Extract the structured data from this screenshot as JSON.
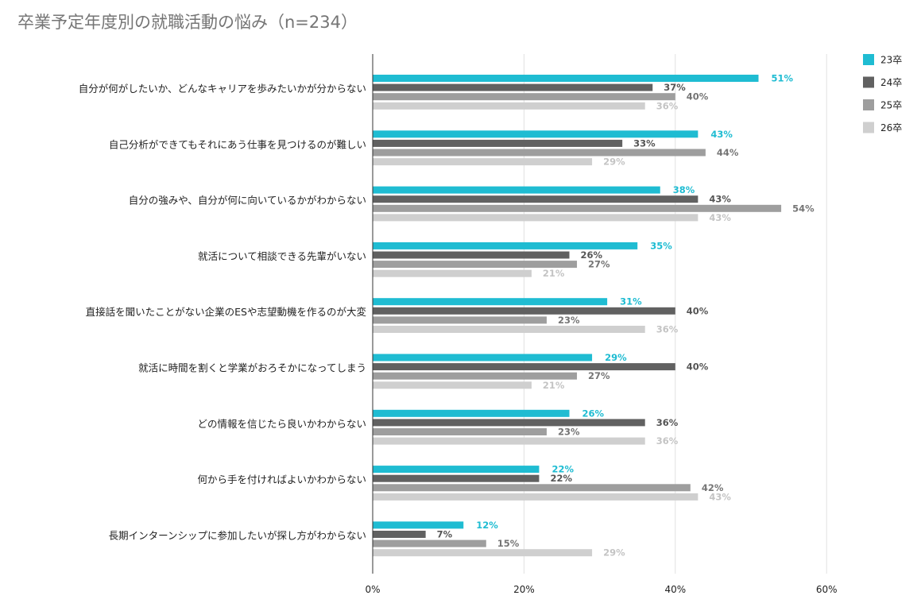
{
  "chart_data": {
    "type": "bar",
    "orientation": "horizontal",
    "title": "卒業予定年度別の就職活動の悩み（n=234）",
    "categories": [
      "自分が何がしたいか、どんなキャリアを歩みたいかが分からない",
      "自己分析ができてもそれにあう仕事を見つけるのが難しい",
      "自分の強みや、自分が何に向いているかがわからない",
      "就活について相談できる先輩がいない",
      "直接話を聞いたことがない企業のESや志望動機を作るのが大変",
      "就活に時間を割くと学業がおろそかになってしまう",
      "どの情報を信じたら良いかわからない",
      "何から手を付ければよいかわからない",
      "長期インターンシップに参加したいが探し方がわからない"
    ],
    "series": [
      {
        "name": "23卒",
        "color": "#1fbcd2",
        "values": [
          51,
          43,
          38,
          35,
          31,
          29,
          26,
          22,
          12
        ]
      },
      {
        "name": "24卒",
        "color": "#616161",
        "values": [
          37,
          33,
          43,
          26,
          40,
          40,
          36,
          22,
          7
        ]
      },
      {
        "name": "25卒",
        "color": "#9e9e9e",
        "values": [
          40,
          44,
          54,
          27,
          23,
          27,
          23,
          42,
          15
        ]
      },
      {
        "name": "26卒",
        "color": "#cfcfcf",
        "values": [
          36,
          29,
          43,
          21,
          36,
          21,
          36,
          43,
          29
        ]
      }
    ],
    "xlim": [
      0,
      60
    ],
    "xticks": [
      0,
      20,
      40,
      60
    ],
    "tick_suffix": "%",
    "grid": true,
    "legend_position": "top-right"
  }
}
